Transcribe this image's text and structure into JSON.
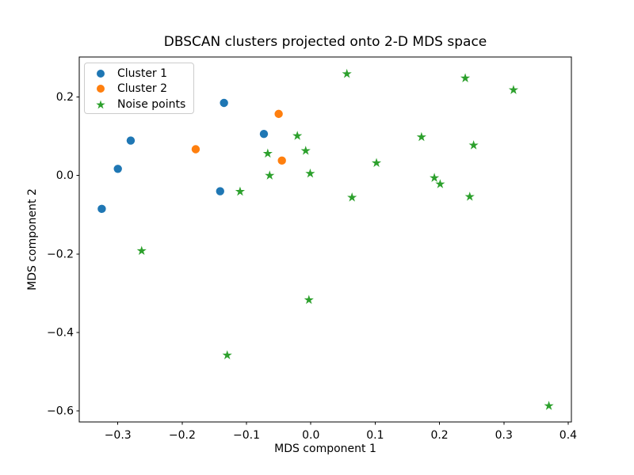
{
  "chart_data": {
    "type": "scatter",
    "title": "DBSCAN clusters projected onto 2-D MDS space",
    "xlabel": "MDS component 1",
    "ylabel": "MDS component 2",
    "xlim": [
      -0.36,
      0.405
    ],
    "ylim": [
      -0.628,
      0.302
    ],
    "x_ticks": [
      -0.3,
      -0.2,
      -0.1,
      0.0,
      0.1,
      0.2,
      0.3,
      0.4
    ],
    "x_tick_labels": [
      "−0.3",
      "−0.2",
      "−0.1",
      "0.0",
      "0.1",
      "0.2",
      "0.3",
      "0.4"
    ],
    "y_ticks": [
      0.2,
      0.0,
      -0.2,
      -0.4,
      -0.6
    ],
    "y_tick_labels": [
      "0.2",
      "0.0",
      "−0.2",
      "−0.4",
      "−0.6"
    ],
    "grid": false,
    "legend_position": "upper left",
    "series": [
      {
        "name": "Cluster 1",
        "marker": "circle",
        "color": "#1f77b4",
        "points": [
          [
            -0.135,
            0.185
          ],
          [
            -0.073,
            0.106
          ],
          [
            -0.28,
            0.089
          ],
          [
            -0.3,
            0.017
          ],
          [
            -0.141,
            -0.04
          ],
          [
            -0.325,
            -0.085
          ]
        ]
      },
      {
        "name": "Cluster 2",
        "marker": "circle",
        "color": "#ff7f0e",
        "points": [
          [
            -0.05,
            0.157
          ],
          [
            -0.179,
            0.067
          ],
          [
            -0.045,
            0.038
          ]
        ]
      },
      {
        "name": "Noise points",
        "marker": "star",
        "color": "#2ca02c",
        "points": [
          [
            0.056,
            0.259
          ],
          [
            0.24,
            0.248
          ],
          [
            0.315,
            0.218
          ],
          [
            -0.021,
            0.101
          ],
          [
            0.172,
            0.098
          ],
          [
            0.253,
            0.077
          ],
          [
            -0.008,
            0.063
          ],
          [
            -0.067,
            0.056
          ],
          [
            0.102,
            0.032
          ],
          [
            -0.001,
            0.005
          ],
          [
            -0.064,
            0.0
          ],
          [
            0.192,
            -0.006
          ],
          [
            0.201,
            -0.022
          ],
          [
            -0.11,
            -0.041
          ],
          [
            0.064,
            -0.056
          ],
          [
            0.247,
            -0.054
          ],
          [
            -0.263,
            -0.192
          ],
          [
            -0.003,
            -0.317
          ],
          [
            -0.13,
            -0.458
          ],
          [
            0.37,
            -0.587
          ]
        ]
      }
    ]
  }
}
